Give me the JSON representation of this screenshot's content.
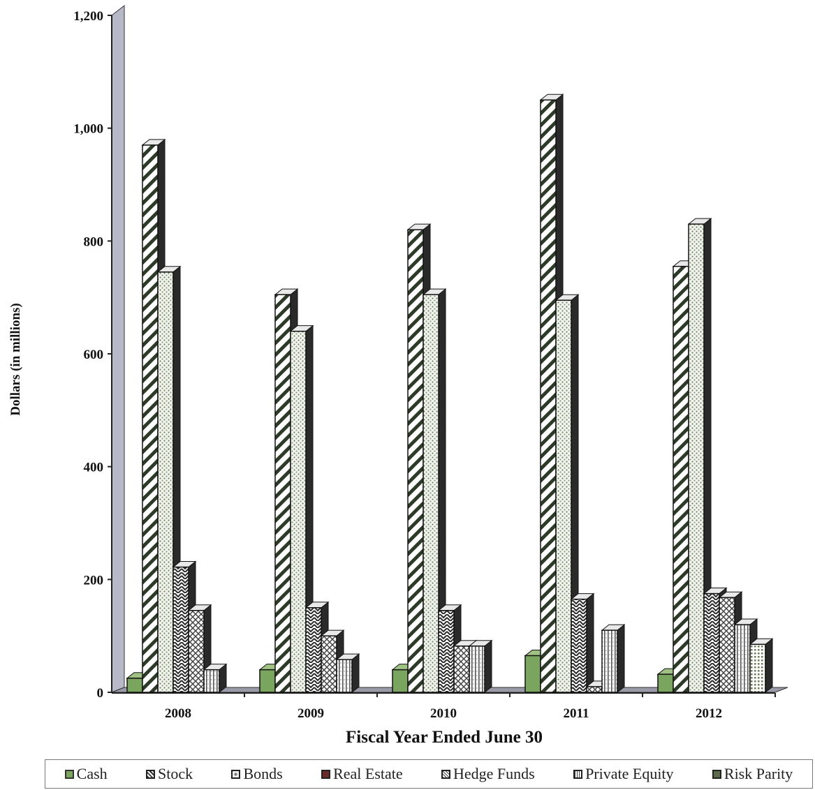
{
  "chart_data": {
    "type": "bar",
    "categories": [
      "2008",
      "2009",
      "2010",
      "2011",
      "2012"
    ],
    "series": [
      {
        "name": "Cash",
        "values": [
          25,
          40,
          40,
          65,
          32
        ],
        "color": "#7aa55f",
        "pattern": "solid"
      },
      {
        "name": "Stock",
        "values": [
          970,
          705,
          820,
          1050,
          755
        ],
        "color": "#ffffff",
        "pattern": "diag"
      },
      {
        "name": "Bonds",
        "values": [
          745,
          640,
          705,
          695,
          830
        ],
        "color": "#ffffff",
        "pattern": "dots"
      },
      {
        "name": "Real Estate",
        "values": [
          222,
          150,
          145,
          165,
          175
        ],
        "color": "#ffffff",
        "pattern": "zigzag"
      },
      {
        "name": "Hedge Funds",
        "values": [
          145,
          100,
          82,
          10,
          168
        ],
        "color": "#ffffff",
        "pattern": "cross"
      },
      {
        "name": "Private Equity",
        "values": [
          40,
          58,
          82,
          110,
          120
        ],
        "color": "#ffffff",
        "pattern": "vlines"
      },
      {
        "name": "Risk Parity",
        "values": [
          0,
          0,
          0,
          0,
          85
        ],
        "color": "#ffffff",
        "pattern": "grid"
      }
    ],
    "y_ticks": [
      "0",
      "200",
      "400",
      "600",
      "800",
      "1,000",
      "1,200"
    ],
    "ylim": [
      0,
      1200
    ],
    "xlabel": "Fiscal Year Ended June 30",
    "ylabel": "Dollars (in millions)",
    "legend_position": "bottom",
    "grid": false
  }
}
